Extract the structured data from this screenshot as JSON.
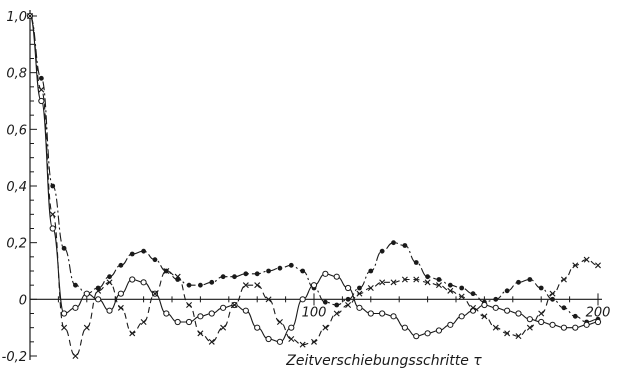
{
  "chart_data": {
    "type": "line",
    "title": "",
    "xlabel": "Zeitverschiebungsschritte τ",
    "ylabel": "",
    "xlim": [
      0,
      200
    ],
    "ylim": [
      -0.2,
      1.0
    ],
    "x_ticks": [
      {
        "value": 100,
        "label": "100"
      },
      {
        "value": 200,
        "label": "200"
      }
    ],
    "y_ticks": [
      {
        "value": 1.0,
        "label": "1,0"
      },
      {
        "value": 0.8,
        "label": "0,8"
      },
      {
        "value": 0.6,
        "label": "0,6"
      },
      {
        "value": 0.4,
        "label": "0,4"
      },
      {
        "value": 0.2,
        "label": "0,2"
      },
      {
        "value": 0.0,
        "label": "0"
      },
      {
        "value": -0.2,
        "label": "-0,2"
      }
    ],
    "grid": false,
    "legend": "none",
    "series": [
      {
        "marker": "filled-circle",
        "line": "dash-dot",
        "x": [
          0,
          4,
          8,
          12,
          16,
          20,
          24,
          28,
          32,
          36,
          40,
          44,
          48,
          52,
          56,
          60,
          64,
          68,
          72,
          76,
          80,
          84,
          88,
          92,
          96,
          100,
          104,
          108,
          112,
          116,
          120,
          124,
          128,
          132,
          136,
          140,
          144,
          148,
          152,
          156,
          160,
          164,
          168,
          172,
          176,
          180,
          184,
          188,
          192,
          196,
          200
        ],
        "y": [
          1.0,
          0.78,
          0.4,
          0.18,
          0.05,
          0.02,
          0.04,
          0.08,
          0.12,
          0.16,
          0.17,
          0.14,
          0.1,
          0.07,
          0.05,
          0.05,
          0.06,
          0.08,
          0.08,
          0.09,
          0.09,
          0.1,
          0.11,
          0.12,
          0.1,
          0.04,
          -0.01,
          -0.02,
          0.0,
          0.04,
          0.1,
          0.17,
          0.2,
          0.19,
          0.13,
          0.08,
          0.07,
          0.05,
          0.04,
          0.02,
          -0.01,
          0.0,
          0.03,
          0.06,
          0.07,
          0.04,
          0.0,
          -0.03,
          -0.06,
          -0.08,
          -0.07
        ]
      },
      {
        "marker": "open-circle",
        "line": "solid",
        "x": [
          0,
          4,
          8,
          12,
          16,
          20,
          24,
          28,
          32,
          36,
          40,
          44,
          48,
          52,
          56,
          60,
          64,
          68,
          72,
          76,
          80,
          84,
          88,
          92,
          96,
          100,
          104,
          108,
          112,
          116,
          120,
          124,
          128,
          132,
          136,
          140,
          144,
          148,
          152,
          156,
          160,
          164,
          168,
          172,
          176,
          180,
          184,
          188,
          192,
          196,
          200
        ],
        "y": [
          1.0,
          0.7,
          0.25,
          -0.05,
          -0.03,
          0.02,
          0.0,
          -0.04,
          0.02,
          0.07,
          0.06,
          0.02,
          -0.05,
          -0.08,
          -0.08,
          -0.06,
          -0.05,
          -0.03,
          -0.02,
          -0.04,
          -0.1,
          -0.14,
          -0.15,
          -0.1,
          0.0,
          0.05,
          0.09,
          0.08,
          0.04,
          -0.03,
          -0.05,
          -0.05,
          -0.06,
          -0.1,
          -0.13,
          -0.12,
          -0.11,
          -0.09,
          -0.06,
          -0.04,
          -0.02,
          -0.03,
          -0.04,
          -0.05,
          -0.07,
          -0.08,
          -0.09,
          -0.1,
          -0.1,
          -0.09,
          -0.08
        ]
      },
      {
        "marker": "cross",
        "line": "dashed",
        "x": [
          0,
          4,
          8,
          12,
          16,
          20,
          24,
          28,
          32,
          36,
          40,
          44,
          48,
          52,
          56,
          60,
          64,
          68,
          72,
          76,
          80,
          84,
          88,
          92,
          96,
          100,
          104,
          108,
          112,
          116,
          120,
          124,
          128,
          132,
          136,
          140,
          144,
          148,
          152,
          156,
          160,
          164,
          168,
          172,
          176,
          180,
          184,
          188,
          192,
          196,
          200
        ],
        "y": [
          1.0,
          0.74,
          0.3,
          -0.1,
          -0.2,
          -0.1,
          0.03,
          0.06,
          -0.03,
          -0.12,
          -0.08,
          0.02,
          0.1,
          0.08,
          -0.02,
          -0.12,
          -0.15,
          -0.1,
          -0.02,
          0.05,
          0.05,
          0.0,
          -0.08,
          -0.14,
          -0.16,
          -0.15,
          -0.1,
          -0.05,
          -0.02,
          0.02,
          0.04,
          0.06,
          0.06,
          0.07,
          0.07,
          0.06,
          0.05,
          0.03,
          0.01,
          -0.03,
          -0.06,
          -0.1,
          -0.12,
          -0.13,
          -0.1,
          -0.05,
          0.02,
          0.07,
          0.12,
          0.14,
          0.12
        ]
      }
    ]
  }
}
